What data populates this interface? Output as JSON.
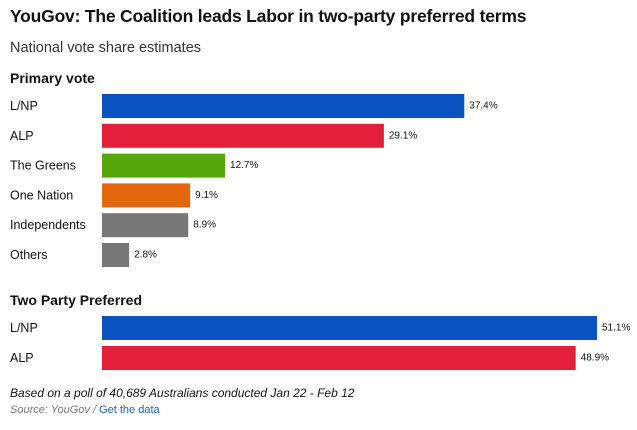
{
  "chart_data": {
    "type": "bar",
    "orientation": "horizontal",
    "title": "YouGov: The Coalition leads Labor in two-party preferred terms",
    "subtitle": "National vote share estimates",
    "value_suffix": "%",
    "groups": [
      {
        "heading": "Primary vote",
        "categories": [
          "L/NP",
          "ALP",
          "The Greens",
          "One Nation",
          "Independents",
          "Others"
        ],
        "values": [
          37.4,
          29.1,
          12.7,
          9.1,
          8.9,
          2.8
        ],
        "colors": [
          "#0b53c1",
          "#e2203a",
          "#55a70c",
          "#e4670e",
          "#777777",
          "#777777"
        ]
      },
      {
        "heading": "Two Party Preferred",
        "categories": [
          "L/NP",
          "ALP"
        ],
        "values": [
          51.1,
          48.9
        ],
        "colors": [
          "#0b53c1",
          "#e2203a"
        ]
      }
    ],
    "xlim": [
      0,
      51.1
    ]
  },
  "footnote": "Based on a poll of 40,689 Australians conducted Jan 22 - Feb 12",
  "source": {
    "prefix": "Source: YouGov",
    "separator": " / ",
    "link_text": "Get the data"
  }
}
